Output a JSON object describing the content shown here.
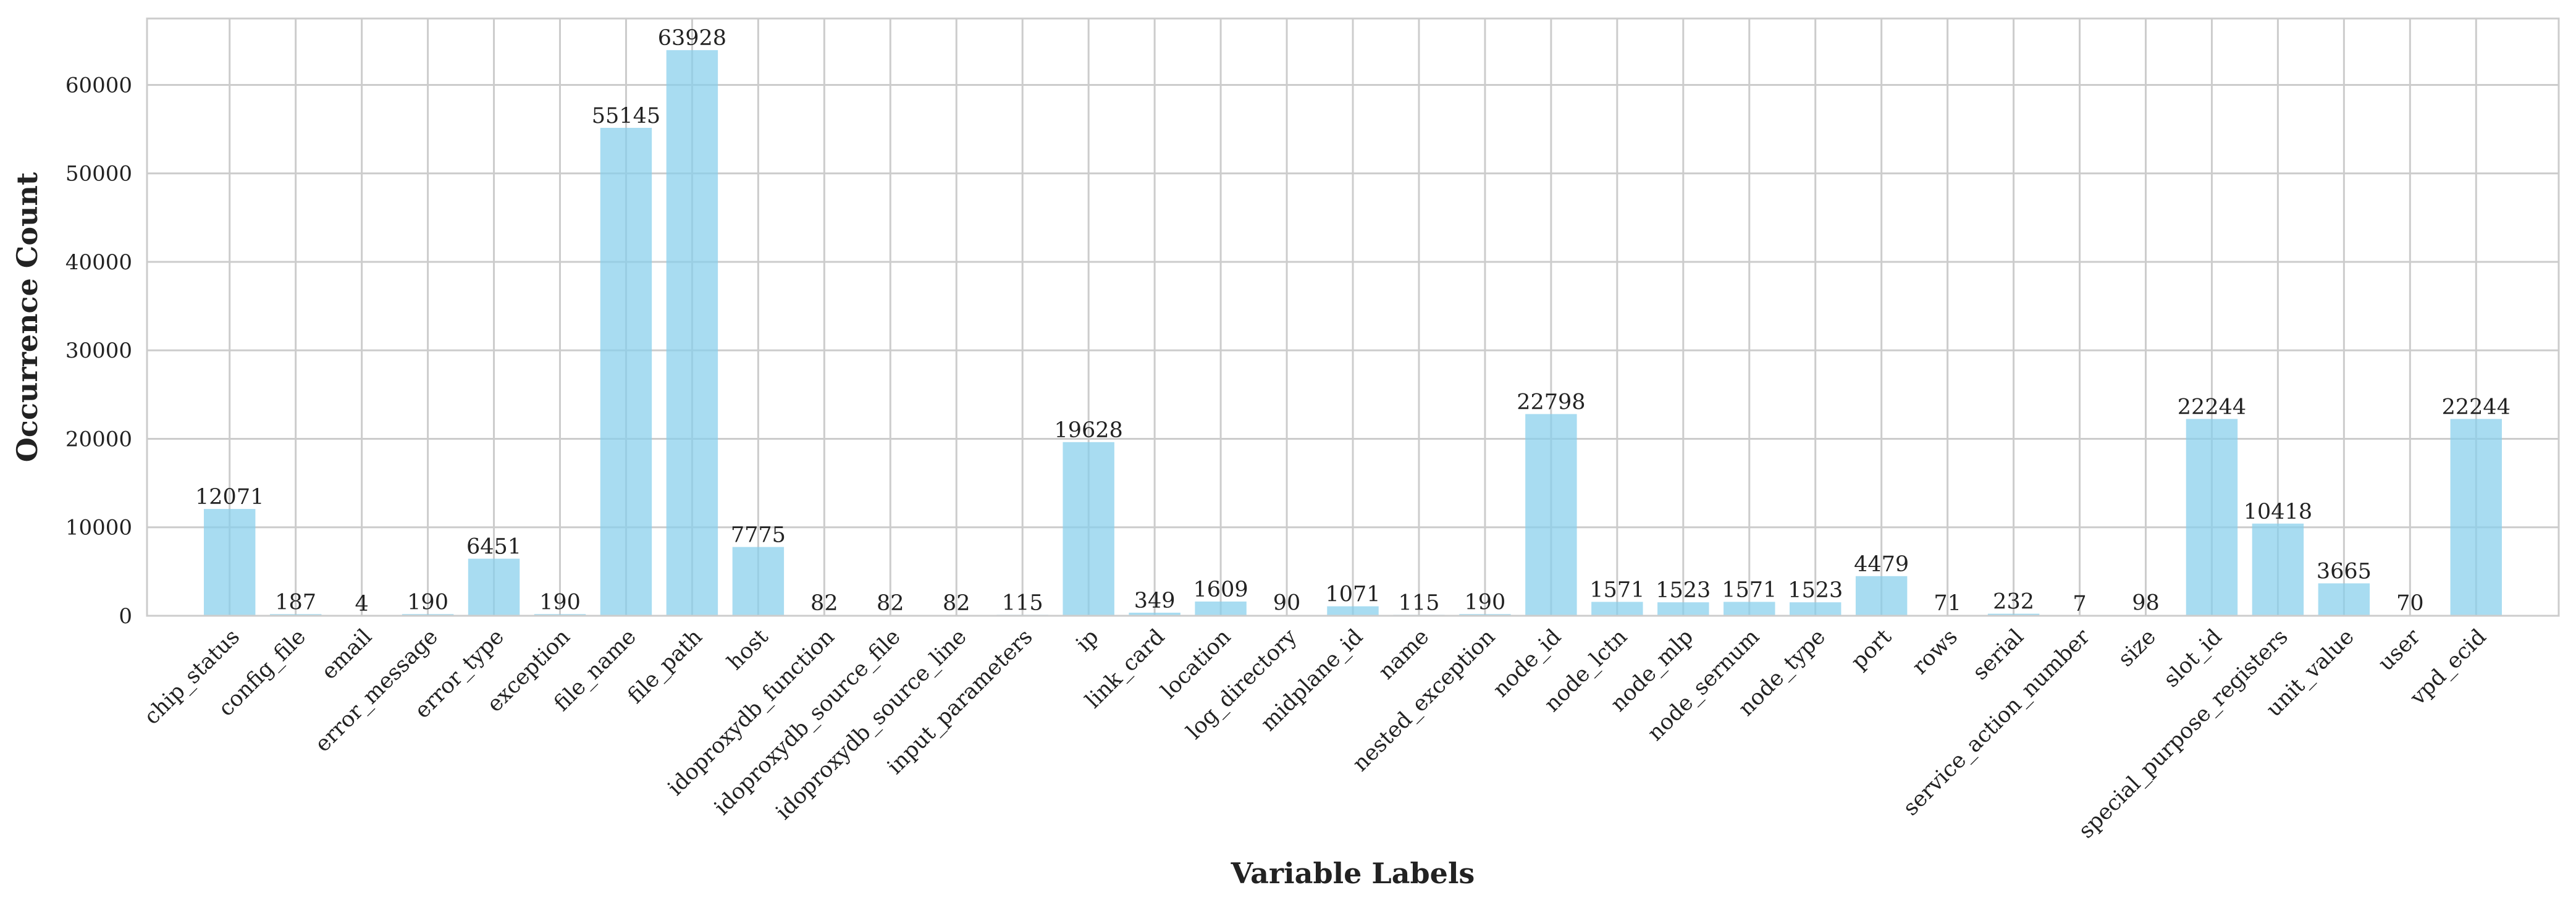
{
  "chart_data": {
    "type": "bar",
    "title": "",
    "xlabel": "Variable Labels",
    "ylabel": "Occurrence Count",
    "ylim": [
      0,
      67500
    ],
    "yticks": [
      0,
      10000,
      20000,
      30000,
      40000,
      50000,
      60000
    ],
    "grid": true,
    "legend": "none",
    "bar_color": "#87CEEB",
    "categories": [
      "chip_status",
      "config_file",
      "email",
      "error_message",
      "error_type",
      "exception",
      "file_name",
      "file_path",
      "host",
      "idoproxydb_function",
      "idoproxydb_source_file",
      "idoproxydb_source_line",
      "input_parameters",
      "ip",
      "link_card",
      "location",
      "log_directory",
      "midplane_id",
      "name",
      "nested_exception",
      "node_id",
      "node_lctn",
      "node_mlp",
      "node_sernum",
      "node_type",
      "port",
      "rows",
      "serial",
      "service_action_number",
      "size",
      "slot_id",
      "special_purpose_registers",
      "unit_value",
      "user",
      "vpd_ecid"
    ],
    "values": [
      12071,
      187,
      4,
      190,
      6451,
      190,
      55145,
      63928,
      7775,
      82,
      82,
      82,
      115,
      19628,
      349,
      1609,
      90,
      1071,
      115,
      190,
      22798,
      1571,
      1523,
      1571,
      1523,
      4479,
      71,
      232,
      7,
      98,
      22244,
      10418,
      3665,
      70,
      22244
    ],
    "data_labels": [
      "12071",
      "187",
      "4",
      "190",
      "6451",
      "190",
      "55145",
      "63928",
      "7775",
      "82",
      "82",
      "82",
      "115",
      "19628",
      "349",
      "1609",
      "90",
      "1071",
      "115",
      "190",
      "22798",
      "1571",
      "1523",
      "1571",
      "1523",
      "4479",
      "71",
      "232",
      "7",
      "98",
      "22244",
      "10418",
      "3665",
      "70",
      "22244"
    ]
  }
}
